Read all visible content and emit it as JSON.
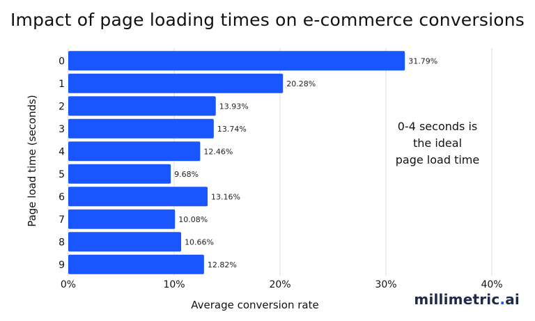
{
  "chart_data": {
    "type": "bar",
    "orientation": "horizontal",
    "title": "Impact of page loading times on e-commerce conversions",
    "xlabel": "Average conversion rate",
    "ylabel": "Page load time (seconds)",
    "categories": [
      "0",
      "1",
      "2",
      "3",
      "4",
      "5",
      "6",
      "7",
      "8",
      "9"
    ],
    "values": [
      31.79,
      20.28,
      13.93,
      13.74,
      12.46,
      9.68,
      13.16,
      10.08,
      10.66,
      12.82
    ],
    "value_labels": [
      "31.79%",
      "20.28%",
      "13.93%",
      "13.74%",
      "12.46%",
      "9.68%",
      "13.16%",
      "10.08%",
      "10.66%",
      "12.82%"
    ],
    "xlim": [
      0,
      40
    ],
    "xticks": [
      0,
      10,
      20,
      30,
      40
    ],
    "xtick_labels": [
      "0%",
      "10%",
      "20%",
      "30%",
      "40%"
    ],
    "grid": true,
    "bar_color": "#1a56ff",
    "annotation": [
      "0-4 seconds is",
      "the ideal",
      "page load time"
    ]
  },
  "brand": {
    "prefix": "millimetric",
    "dot": ".",
    "suffix": "ai"
  }
}
